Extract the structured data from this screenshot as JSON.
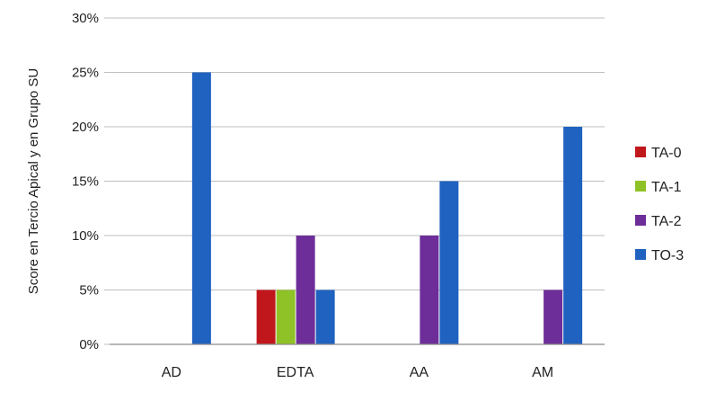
{
  "chart_data": {
    "type": "bar",
    "categories": [
      "AD",
      "EDTA",
      "AA",
      "AM"
    ],
    "series": [
      {
        "name": "TA-0",
        "color": "#c0171c",
        "values": [
          0,
          5,
          0,
          0
        ]
      },
      {
        "name": "TA-1",
        "color": "#8fc226",
        "values": [
          0,
          5,
          0,
          0
        ]
      },
      {
        "name": "TA-2",
        "color": "#6d2e99",
        "values": [
          0,
          10,
          10,
          5
        ]
      },
      {
        "name": "TO-3",
        "color": "#1f62c0",
        "values": [
          25,
          5,
          15,
          20
        ]
      }
    ],
    "ylabel": "Score en Tercio Apical y en Grupo SU",
    "xlabel": "",
    "ylim": [
      0,
      30
    ],
    "yticks": [
      0,
      5,
      10,
      15,
      20,
      25,
      30
    ],
    "ytick_labels": [
      "0%",
      "5%",
      "10%",
      "15%",
      "20%",
      "25%",
      "30%"
    ],
    "grid": true,
    "legend_position": "right"
  }
}
